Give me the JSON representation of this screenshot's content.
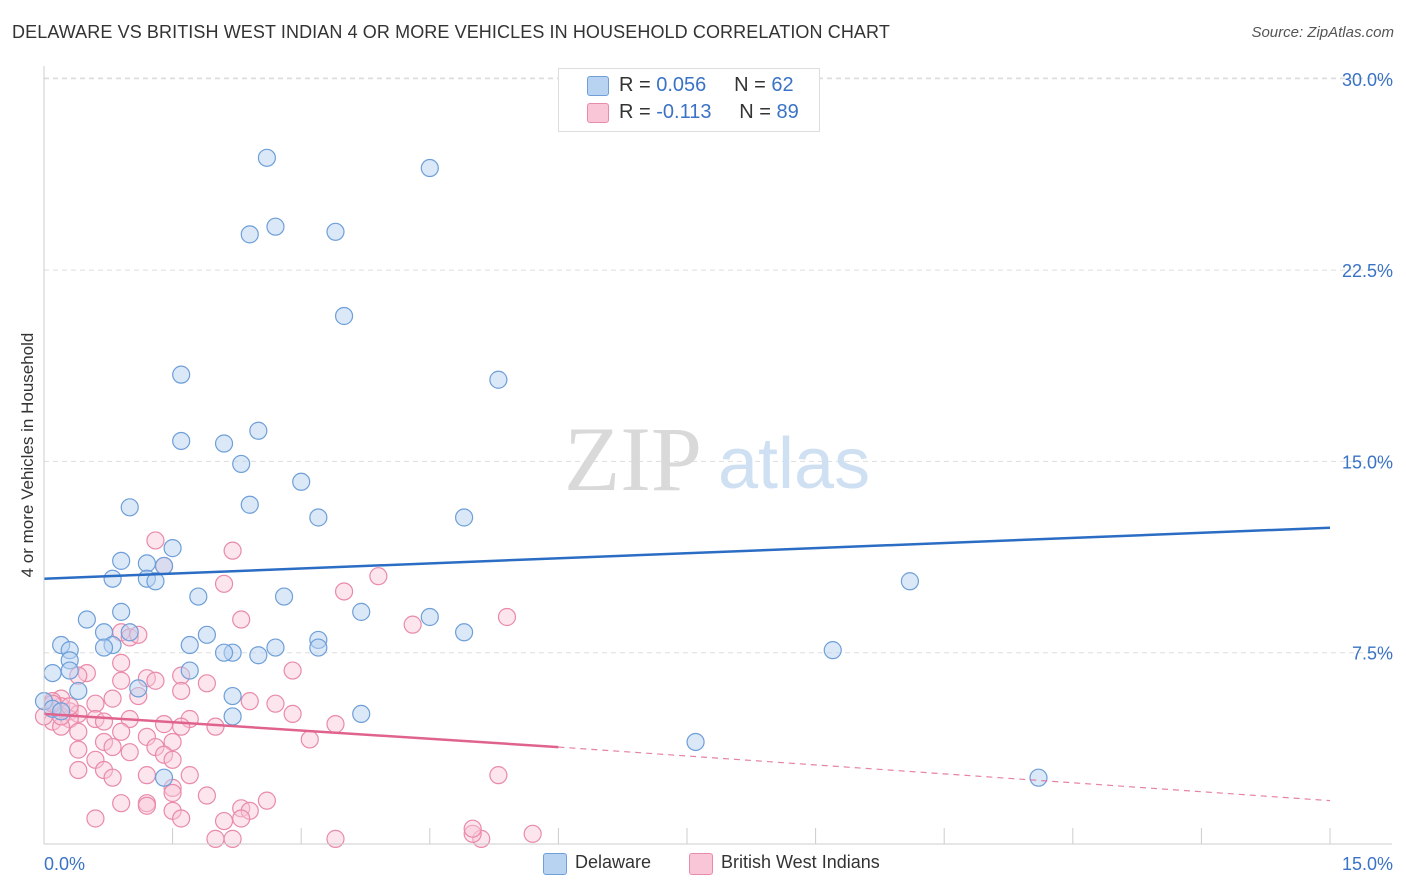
{
  "title": "DELAWARE VS BRITISH WEST INDIAN 4 OR MORE VEHICLES IN HOUSEHOLD CORRELATION CHART",
  "source": "Source: ZipAtlas.com",
  "watermark": {
    "zip": "ZIP",
    "atlas": "atlas"
  },
  "legend": {
    "delaware": {
      "r_label": "R =",
      "r_value": "0.056",
      "n_label": "N =",
      "n_value": "62"
    },
    "bwi": {
      "r_label": "R =",
      "r_value": "-0.113",
      "n_label": "N =",
      "n_value": "89"
    }
  },
  "bottom_legend": {
    "delaware": "Delaware",
    "bwi": "British West Indians"
  },
  "colors": {
    "delaware_fill": "#b8d2f2",
    "delaware_stroke": "#6e9fd8",
    "delaware_line": "#2b6dc4",
    "bwi_fill": "#f8c6d6",
    "bwi_stroke": "#e98aa9",
    "bwi_line": "#e0638e",
    "tick_text": "#3a73c5",
    "grid": "#dddddd"
  },
  "chart_data": {
    "type": "scatter",
    "title": "DELAWARE VS BRITISH WEST INDIAN 4 OR MORE VEHICLES IN HOUSEHOLD CORRELATION CHART",
    "xlabel": "",
    "ylabel": "4 or more Vehicles in Household",
    "xlim": [
      0,
      15
    ],
    "ylim": [
      0,
      30.5
    ],
    "x_tick_labels": [
      "0.0%",
      "15.0%"
    ],
    "y_ticks": [
      7.5,
      15.0,
      22.5,
      30.0
    ],
    "y_tick_labels": [
      "7.5%",
      "15.0%",
      "22.5%",
      "30.0%"
    ],
    "grid": true,
    "series": [
      {
        "name": "Delaware",
        "trend": {
          "x": [
            0,
            15
          ],
          "y": [
            10.4,
            12.4
          ]
        },
        "points": [
          [
            2.6,
            26.9
          ],
          [
            4.5,
            26.5
          ],
          [
            2.4,
            23.9
          ],
          [
            2.7,
            24.2
          ],
          [
            3.4,
            24.0
          ],
          [
            3.5,
            20.7
          ],
          [
            1.6,
            18.4
          ],
          [
            5.3,
            18.2
          ],
          [
            1.6,
            15.8
          ],
          [
            2.1,
            15.7
          ],
          [
            2.5,
            16.2
          ],
          [
            2.3,
            14.9
          ],
          [
            3.0,
            14.2
          ],
          [
            1.0,
            13.2
          ],
          [
            2.4,
            13.3
          ],
          [
            3.2,
            12.8
          ],
          [
            4.9,
            12.8
          ],
          [
            1.5,
            11.6
          ],
          [
            0.9,
            11.1
          ],
          [
            1.2,
            11.0
          ],
          [
            1.4,
            10.9
          ],
          [
            0.8,
            10.4
          ],
          [
            1.2,
            10.4
          ],
          [
            1.3,
            10.3
          ],
          [
            10.1,
            10.3
          ],
          [
            1.8,
            9.7
          ],
          [
            2.8,
            9.7
          ],
          [
            0.9,
            9.1
          ],
          [
            3.7,
            9.1
          ],
          [
            4.5,
            8.9
          ],
          [
            0.5,
            8.8
          ],
          [
            0.7,
            8.3
          ],
          [
            1.0,
            8.3
          ],
          [
            1.9,
            8.2
          ],
          [
            4.9,
            8.3
          ],
          [
            0.2,
            7.8
          ],
          [
            0.8,
            7.8
          ],
          [
            1.7,
            7.8
          ],
          [
            2.7,
            7.7
          ],
          [
            3.2,
            8.0
          ],
          [
            3.2,
            7.7
          ],
          [
            9.2,
            7.6
          ],
          [
            0.3,
            7.6
          ],
          [
            0.7,
            7.7
          ],
          [
            2.2,
            7.5
          ],
          [
            2.5,
            7.4
          ],
          [
            2.1,
            7.5
          ],
          [
            0.3,
            7.2
          ],
          [
            0.1,
            6.7
          ],
          [
            0.3,
            6.8
          ],
          [
            1.7,
            6.8
          ],
          [
            0.4,
            6.0
          ],
          [
            1.1,
            6.1
          ],
          [
            2.2,
            5.8
          ],
          [
            0.0,
            5.6
          ],
          [
            0.1,
            5.3
          ],
          [
            0.2,
            5.2
          ],
          [
            2.2,
            5.0
          ],
          [
            3.7,
            5.1
          ],
          [
            7.6,
            4.0
          ],
          [
            1.4,
            2.6
          ],
          [
            11.6,
            2.6
          ]
        ]
      },
      {
        "name": "British West Indians",
        "trend": {
          "x": [
            0,
            6
          ],
          "y": [
            5.1,
            3.8
          ]
        },
        "trend_extended": {
          "x": [
            6,
            15
          ],
          "y": [
            3.8,
            1.7
          ]
        },
        "points": [
          [
            1.3,
            11.9
          ],
          [
            2.2,
            11.5
          ],
          [
            1.4,
            10.9
          ],
          [
            3.9,
            10.5
          ],
          [
            2.1,
            10.2
          ],
          [
            3.5,
            9.9
          ],
          [
            5.4,
            8.9
          ],
          [
            2.3,
            8.8
          ],
          [
            4.3,
            8.6
          ],
          [
            0.9,
            8.3
          ],
          [
            1.0,
            8.1
          ],
          [
            1.1,
            8.2
          ],
          [
            0.9,
            7.1
          ],
          [
            0.5,
            6.7
          ],
          [
            0.4,
            6.6
          ],
          [
            1.2,
            6.5
          ],
          [
            0.9,
            6.4
          ],
          [
            1.3,
            6.4
          ],
          [
            1.6,
            6.6
          ],
          [
            1.9,
            6.3
          ],
          [
            2.9,
            6.8
          ],
          [
            1.6,
            6.0
          ],
          [
            0.2,
            5.7
          ],
          [
            0.1,
            5.5
          ],
          [
            0.2,
            5.4
          ],
          [
            0.3,
            5.2
          ],
          [
            0.4,
            5.1
          ],
          [
            0.6,
            5.5
          ],
          [
            0.8,
            5.7
          ],
          [
            1.1,
            5.8
          ],
          [
            2.4,
            5.6
          ],
          [
            1.7,
            4.9
          ],
          [
            2.9,
            5.1
          ],
          [
            0.6,
            4.9
          ],
          [
            0.7,
            4.8
          ],
          [
            0.3,
            4.9
          ],
          [
            1.0,
            4.9
          ],
          [
            1.4,
            4.7
          ],
          [
            1.6,
            4.6
          ],
          [
            2.0,
            4.6
          ],
          [
            3.4,
            4.7
          ],
          [
            0.1,
            4.8
          ],
          [
            0.2,
            4.6
          ],
          [
            0.4,
            4.4
          ],
          [
            0.9,
            4.4
          ],
          [
            1.2,
            4.2
          ],
          [
            1.3,
            3.8
          ],
          [
            1.5,
            4.0
          ],
          [
            0.7,
            4.0
          ],
          [
            0.8,
            3.8
          ],
          [
            0.4,
            3.7
          ],
          [
            3.1,
            4.1
          ],
          [
            1.0,
            3.6
          ],
          [
            1.4,
            3.5
          ],
          [
            1.5,
            3.3
          ],
          [
            0.6,
            3.3
          ],
          [
            0.4,
            2.9
          ],
          [
            0.7,
            2.9
          ],
          [
            1.2,
            2.7
          ],
          [
            1.7,
            2.7
          ],
          [
            0.8,
            2.6
          ],
          [
            5.3,
            2.7
          ],
          [
            1.5,
            2.2
          ],
          [
            1.5,
            2.0
          ],
          [
            1.9,
            1.9
          ],
          [
            2.3,
            1.4
          ],
          [
            2.4,
            1.3
          ],
          [
            2.6,
            1.7
          ],
          [
            1.2,
            1.6
          ],
          [
            1.2,
            1.5
          ],
          [
            0.9,
            1.6
          ],
          [
            1.5,
            1.3
          ],
          [
            2.3,
            1.0
          ],
          [
            1.6,
            1.0
          ],
          [
            0.6,
            1.0
          ],
          [
            2.1,
            0.9
          ],
          [
            5.7,
            0.4
          ],
          [
            3.4,
            0.2
          ],
          [
            5.1,
            0.2
          ],
          [
            5.0,
            0.4
          ],
          [
            5.0,
            0.6
          ],
          [
            2.0,
            0.2
          ],
          [
            2.2,
            0.2
          ],
          [
            0.1,
            5.6
          ],
          [
            0.0,
            5.0
          ],
          [
            0.2,
            5.0
          ],
          [
            0.1,
            5.5
          ],
          [
            0.3,
            5.4
          ],
          [
            2.7,
            5.5
          ]
        ]
      }
    ]
  }
}
